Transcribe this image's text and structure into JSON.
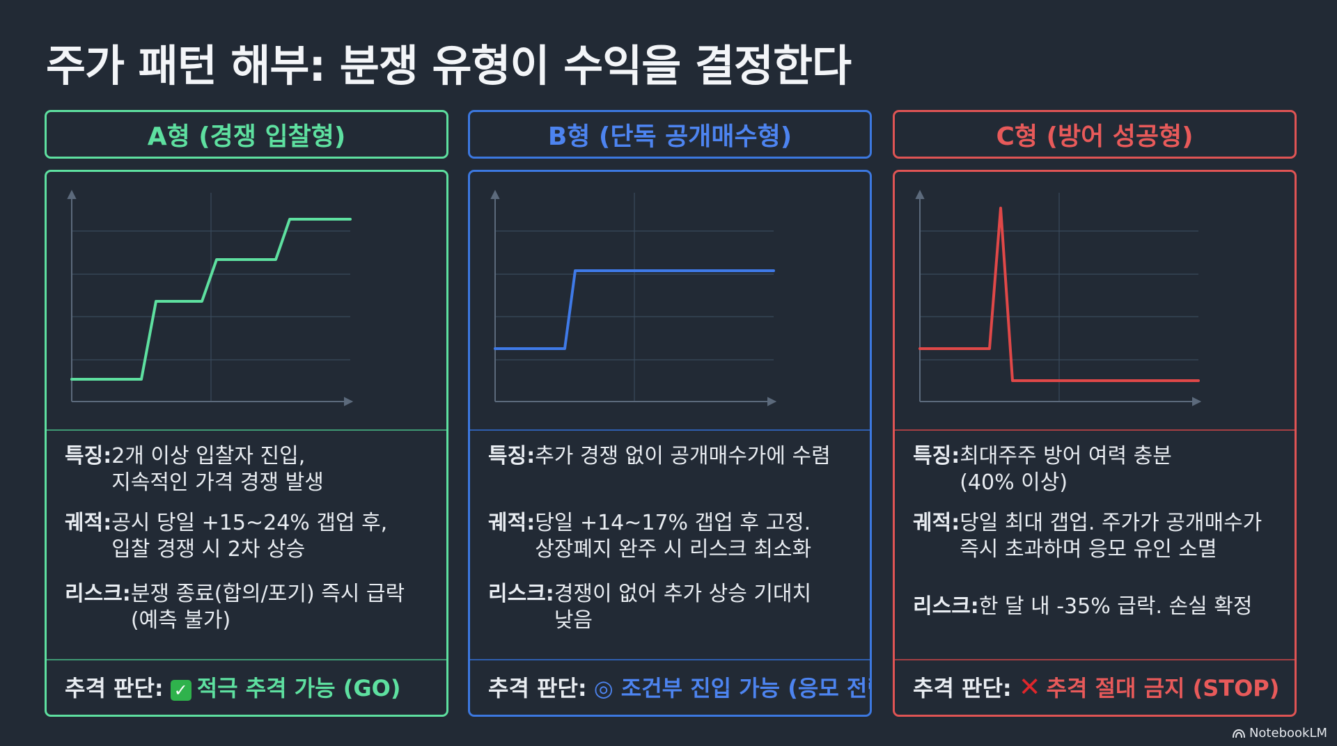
{
  "title": "주가 패턴 해부: 분쟁 유형이 수익을 결정한다",
  "colors": {
    "a": "#5ee0a0",
    "b": "#4d84f0",
    "c": "#e85a5a"
  },
  "columns": [
    {
      "header": "A형 (경쟁 입찰형)",
      "feature_label": "특징: ",
      "feature": "2개 이상 입찰자 진입,\n지속적인 가격 경쟁 발생",
      "trajectory_label": "궤적: ",
      "trajectory": "공시 당일 +15~24% 갭업 후,\n입찰 경쟁 시 2차 상승",
      "risk_label": "리스크: ",
      "risk": "분쟁 종료(합의/포기) 즉시 급락\n(예측 불가)",
      "verdict_label": "추격 판단:",
      "verdict_icon": "check-icon",
      "verdict": "적극 추격 가능 (GO)"
    },
    {
      "header": "B형 (단독 공개매수형)",
      "feature_label": "특징: ",
      "feature": "추가 경쟁 없이 공개매수가에 수렴",
      "trajectory_label": "궤적: ",
      "trajectory": "당일 +14~17% 갭업 후 고정.\n상장폐지 완주 시 리스크 최소화",
      "risk_label": "리스크: ",
      "risk": "경쟁이 없어 추가 상승 기대치\n낮음",
      "verdict_label": "추격 판단:",
      "verdict_icon": "double-circle-icon",
      "verdict": "◎ 조건부 진입 가능 (응모 전략)"
    },
    {
      "header": "C형 (방어 성공형)",
      "feature_label": "특징: ",
      "feature": "최대주주 방어 여력 충분\n(40% 이상)",
      "trajectory_label": "궤적: ",
      "trajectory": "당일 최대 갭업. 주가가 공개매수가\n즉시 초과하며 응모 유인 소멸",
      "risk_label": "리스크: ",
      "risk": "한 달 내 -35% 급락. 손실 확정",
      "verdict_label": "추격 판단:",
      "verdict_icon": "cross-icon",
      "verdict": "추격 절대 금지 (STOP)"
    }
  ],
  "chart_data": [
    {
      "type": "line",
      "series": [
        {
          "values": [
            1,
            1,
            2,
            2,
            3,
            3,
            4,
            4
          ]
        }
      ]
    },
    {
      "type": "line",
      "series": [
        {
          "values": [
            1,
            1,
            2.5,
            2.5
          ]
        }
      ]
    },
    {
      "type": "line",
      "series": [
        {
          "values": [
            1,
            1,
            4.2,
            0.6,
            0.6
          ]
        }
      ]
    }
  ],
  "brand": "NotebookLM"
}
